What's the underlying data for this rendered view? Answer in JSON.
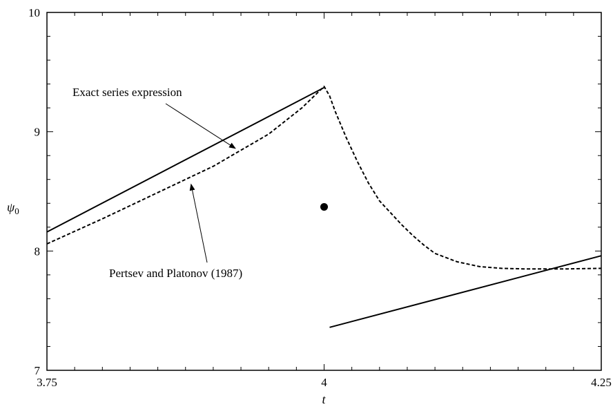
{
  "chart_data": {
    "type": "line",
    "title": "",
    "xlabel": "t",
    "ylabel": "ψ",
    "ylabel_sub": "0",
    "xlim": [
      3.75,
      4.25
    ],
    "ylim": [
      7,
      10
    ],
    "x_ticks": [
      3.75,
      4,
      4.25
    ],
    "x_tick_labels": [
      "3.75",
      "4",
      "4.25"
    ],
    "y_ticks": [
      7,
      8,
      9,
      10
    ],
    "y_tick_labels": [
      "7",
      "8",
      "9",
      "10"
    ],
    "grid": false,
    "legend": "none",
    "series": [
      {
        "name": "Exact series expression",
        "style": "solid",
        "color": "#000000",
        "segments": [
          [
            [
              3.75,
              8.16
            ],
            [
              4.0,
              9.37
            ]
          ],
          [
            [
              4.005,
              7.36
            ],
            [
              4.25,
              7.96
            ]
          ]
        ]
      },
      {
        "name": "Pertsev and Platonov (1987)",
        "style": "dashed",
        "color": "#000000",
        "segments": [
          [
            [
              3.75,
              8.06
            ],
            [
              3.8,
              8.27
            ],
            [
              3.85,
              8.49
            ],
            [
              3.9,
              8.71
            ],
            [
              3.95,
              8.98
            ],
            [
              3.98,
              9.2
            ],
            [
              4.0,
              9.38
            ],
            [
              4.005,
              9.3
            ],
            [
              4.01,
              9.17
            ],
            [
              4.02,
              8.95
            ],
            [
              4.03,
              8.75
            ],
            [
              4.04,
              8.57
            ],
            [
              4.05,
              8.42
            ],
            [
              4.06,
              8.32
            ],
            [
              4.07,
              8.22
            ],
            [
              4.08,
              8.13
            ],
            [
              4.09,
              8.05
            ],
            [
              4.1,
              7.98
            ],
            [
              4.12,
              7.91
            ],
            [
              4.14,
              7.87
            ],
            [
              4.16,
              7.855
            ],
            [
              4.18,
              7.85
            ],
            [
              4.2,
              7.85
            ],
            [
              4.22,
              7.85
            ],
            [
              4.25,
              7.855
            ]
          ]
        ]
      }
    ],
    "points": [
      {
        "x": 4.0,
        "y": 8.37,
        "marker": "filled-circle"
      }
    ],
    "annotations": [
      {
        "text": "Exact series expression",
        "target": [
          3.92,
          8.86
        ]
      },
      {
        "text": "Pertsev and Platonov (1987)",
        "target": [
          3.88,
          8.56
        ]
      }
    ]
  }
}
